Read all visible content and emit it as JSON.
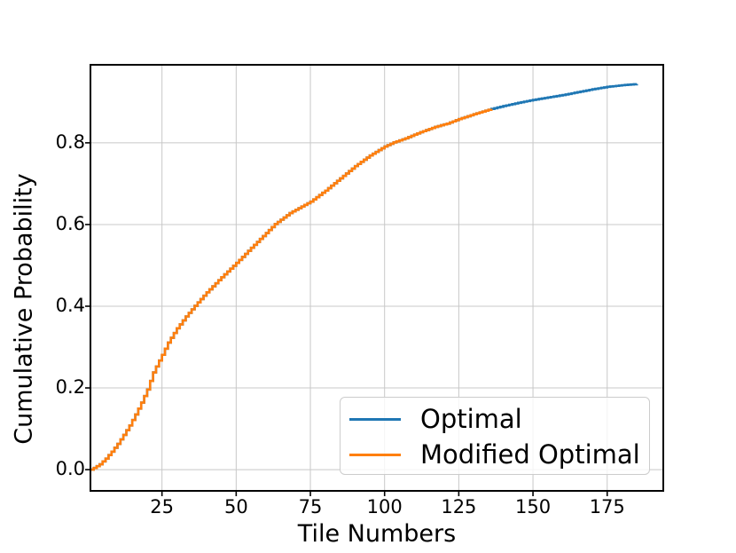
{
  "figure": {
    "background": "#ffffff"
  },
  "chart_data": {
    "type": "line",
    "subtype": "ecdf-step",
    "title": "",
    "xlabel": "Tile Numbers",
    "ylabel": "Cumulative Probability",
    "x_ticks": [
      25,
      50,
      75,
      100,
      125,
      150,
      175
    ],
    "y_ticks": [
      0.0,
      0.2,
      0.4,
      0.6,
      0.8
    ],
    "xlim": [
      0.9,
      193.9
    ],
    "ylim": [
      -0.052,
      0.991
    ],
    "grid": true,
    "grid_color": "#c8c8c8",
    "axis_color": "#000000",
    "tick_color": "#000000",
    "legend": {
      "position": "lower right",
      "border_color": "#cccccc"
    },
    "series": [
      {
        "name": "Optimal",
        "color": "#1f77b4",
        "x_start": 1,
        "x_end": 185
      },
      {
        "name": "Modified Optimal",
        "color": "#ff7f0e",
        "x_start": 1,
        "x_end": 136
      }
    ],
    "cdf_points": [
      [
        1,
        0.0
      ],
      [
        2,
        0.004
      ],
      [
        4,
        0.013
      ],
      [
        6,
        0.027
      ],
      [
        8,
        0.044
      ],
      [
        10,
        0.063
      ],
      [
        12,
        0.085
      ],
      [
        14,
        0.108
      ],
      [
        16,
        0.135
      ],
      [
        18,
        0.164
      ],
      [
        20,
        0.196
      ],
      [
        22,
        0.238
      ],
      [
        24,
        0.267
      ],
      [
        25,
        0.281
      ],
      [
        27,
        0.311
      ],
      [
        30,
        0.346
      ],
      [
        33,
        0.375
      ],
      [
        36,
        0.401
      ],
      [
        40,
        0.434
      ],
      [
        45,
        0.471
      ],
      [
        50,
        0.506
      ],
      [
        55,
        0.543
      ],
      [
        60,
        0.579
      ],
      [
        63,
        0.601
      ],
      [
        68,
        0.628
      ],
      [
        72,
        0.644
      ],
      [
        75,
        0.656
      ],
      [
        80,
        0.683
      ],
      [
        85,
        0.713
      ],
      [
        90,
        0.743
      ],
      [
        95,
        0.769
      ],
      [
        100,
        0.791
      ],
      [
        103,
        0.801
      ],
      [
        107,
        0.811
      ],
      [
        112,
        0.826
      ],
      [
        117,
        0.839
      ],
      [
        121,
        0.847
      ],
      [
        125,
        0.858
      ],
      [
        130,
        0.87
      ],
      [
        136,
        0.883
      ],
      [
        140,
        0.89
      ],
      [
        145,
        0.898
      ],
      [
        150,
        0.905
      ],
      [
        155,
        0.911
      ],
      [
        160,
        0.917
      ],
      [
        165,
        0.924
      ],
      [
        170,
        0.931
      ],
      [
        175,
        0.937
      ],
      [
        180,
        0.941
      ],
      [
        185,
        0.944
      ]
    ]
  }
}
